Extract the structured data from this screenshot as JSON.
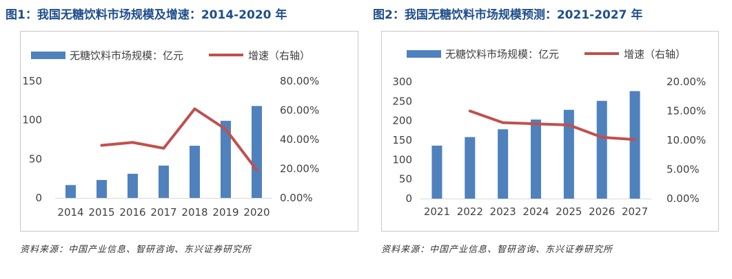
{
  "figures": [
    {
      "title": "图1：我国无糖饮料市场规模及增速：2014-2020 年",
      "source": "资料来源：中国产业信息、智研咨询、东兴证券研究所"
    },
    {
      "title": "图2：我国无糖饮料市场规模预测：2021-2027 年",
      "source": "资料来源：中国产业信息、智研咨询、东兴证券研究所"
    }
  ],
  "chart_data": [
    {
      "type": "bar",
      "categories": [
        "2014",
        "2015",
        "2016",
        "2017",
        "2018",
        "2019",
        "2020"
      ],
      "series": [
        {
          "name": "无糖饮料市场规模：亿元",
          "type": "bar",
          "axis": "left",
          "values": [
            16.5,
            23,
            31,
            41.5,
            67,
            99,
            118
          ]
        },
        {
          "name": "增速（右轴）",
          "type": "line",
          "axis": "right",
          "values": [
            null,
            0.36,
            0.38,
            0.34,
            0.61,
            0.47,
            0.19
          ]
        }
      ],
      "y_left": {
        "range": [
          0,
          150
        ],
        "ticks": [
          0,
          50,
          100,
          150
        ],
        "labels": [
          "0",
          "50",
          "100",
          "150"
        ]
      },
      "y_right": {
        "range": [
          0,
          0.8
        ],
        "ticks": [
          0,
          0.2,
          0.4,
          0.6,
          0.8
        ],
        "labels": [
          "0.00%",
          "20.00%",
          "40.00%",
          "60.00%",
          "80.00%"
        ]
      },
      "grid": false,
      "legend": "top",
      "colors": {
        "bar": "#4f81bd",
        "line": "#c0504d"
      }
    },
    {
      "type": "bar",
      "categories": [
        "2021",
        "2022",
        "2023",
        "2024",
        "2025",
        "2026",
        "2027"
      ],
      "series": [
        {
          "name": "无糖饮料市场规模：亿元",
          "type": "bar",
          "axis": "left",
          "values": [
            136,
            158,
            178,
            203,
            228,
            251,
            276
          ]
        },
        {
          "name": "增速（右轴）",
          "type": "line",
          "axis": "right",
          "values": [
            null,
            0.15,
            0.13,
            0.128,
            0.126,
            0.105,
            0.101
          ]
        }
      ],
      "y_left": {
        "range": [
          0,
          300
        ],
        "ticks": [
          0,
          50,
          100,
          150,
          200,
          250,
          300
        ],
        "labels": [
          "0",
          "50",
          "100",
          "150",
          "200",
          "250",
          "300"
        ]
      },
      "y_right": {
        "range": [
          0,
          0.2
        ],
        "ticks": [
          0,
          0.05,
          0.1,
          0.15,
          0.2
        ],
        "labels": [
          "0.00%",
          "5.00%",
          "10.00%",
          "15.00%",
          "20.00%"
        ]
      },
      "grid": false,
      "legend": "top",
      "colors": {
        "bar": "#4f81bd",
        "line": "#c0504d"
      }
    }
  ]
}
